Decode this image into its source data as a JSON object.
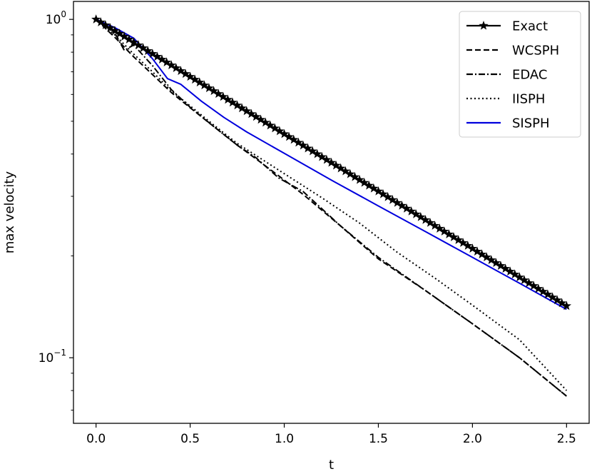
{
  "chart_data": {
    "type": "line",
    "title": "",
    "xlabel": "t",
    "ylabel": "max velocity",
    "xlim": [
      -0.12,
      2.62
    ],
    "ylim": [
      0.064,
      1.13
    ],
    "yscale": "log",
    "grid": false,
    "legend_position": "top-right",
    "x_ticks": [
      {
        "value": 0.0,
        "label": "0.0"
      },
      {
        "value": 0.5,
        "label": "0.5"
      },
      {
        "value": 1.0,
        "label": "1.0"
      },
      {
        "value": 1.5,
        "label": "1.5"
      },
      {
        "value": 2.0,
        "label": "2.0"
      },
      {
        "value": 2.5,
        "label": "2.5"
      }
    ],
    "y_ticks": [
      {
        "value": 1.0,
        "base": "10",
        "exp": "0"
      },
      {
        "value": 0.1,
        "base": "10",
        "exp": "−1"
      }
    ],
    "y_minor_ticks": [
      0.07,
      0.08,
      0.09,
      0.2,
      0.3,
      0.4,
      0.5,
      0.6,
      0.7,
      0.8,
      0.9
    ],
    "series": [
      {
        "name": "Exact",
        "color": "#000000",
        "dash": "solid",
        "marker": "star",
        "decay_rate": 0.78,
        "x_start": 0.0,
        "x_end": 2.5,
        "x_step": 0.025
      },
      {
        "name": "WCSPH",
        "color": "#000000",
        "dash": "dashed",
        "x": [
          0.0,
          0.1,
          0.2,
          0.25,
          0.4,
          0.5,
          0.62,
          0.75,
          0.85,
          0.97,
          1.1,
          1.3,
          1.5,
          1.75,
          2.0,
          2.25,
          2.5
        ],
        "y": [
          1.0,
          0.885,
          0.775,
          0.73,
          0.608,
          0.548,
          0.485,
          0.425,
          0.387,
          0.345,
          0.304,
          0.245,
          0.196,
          0.158,
          0.126,
          0.1,
          0.077
        ]
      },
      {
        "name": "EDAC",
        "color": "#000000",
        "dash": "dashdot",
        "x": [
          0.0,
          0.1,
          0.15,
          0.2,
          0.3,
          0.4,
          0.5,
          0.62,
          0.75,
          0.85,
          0.97,
          1.1,
          1.3,
          1.5,
          1.75,
          2.0,
          2.25,
          2.5
        ],
        "y": [
          1.0,
          0.91,
          0.81,
          0.84,
          0.73,
          0.62,
          0.55,
          0.485,
          0.425,
          0.39,
          0.34,
          0.31,
          0.245,
          0.198,
          0.158,
          0.126,
          0.1,
          0.077
        ]
      },
      {
        "name": "IISPH",
        "color": "#000000",
        "dash": "dotted",
        "x": [
          0.0,
          0.1,
          0.2,
          0.3,
          0.4,
          0.5,
          0.62,
          0.75,
          0.85,
          1.0,
          1.2,
          1.4,
          1.6,
          1.8,
          2.0,
          2.25,
          2.5
        ],
        "y": [
          1.0,
          0.9,
          0.79,
          0.7,
          0.615,
          0.555,
          0.49,
          0.43,
          0.396,
          0.35,
          0.297,
          0.25,
          0.205,
          0.172,
          0.143,
          0.113,
          0.08
        ]
      },
      {
        "name": "SISPH",
        "color": "#0000dd",
        "dash": "solid",
        "x": [
          0.0,
          0.1,
          0.2,
          0.3,
          0.38,
          0.45,
          0.56,
          0.68,
          0.8,
          1.0,
          1.25,
          1.5,
          1.75,
          2.0,
          2.25,
          2.5
        ],
        "y": [
          1.0,
          0.945,
          0.88,
          0.765,
          0.668,
          0.643,
          0.573,
          0.513,
          0.465,
          0.402,
          0.335,
          0.281,
          0.236,
          0.198,
          0.166,
          0.139
        ]
      }
    ]
  }
}
